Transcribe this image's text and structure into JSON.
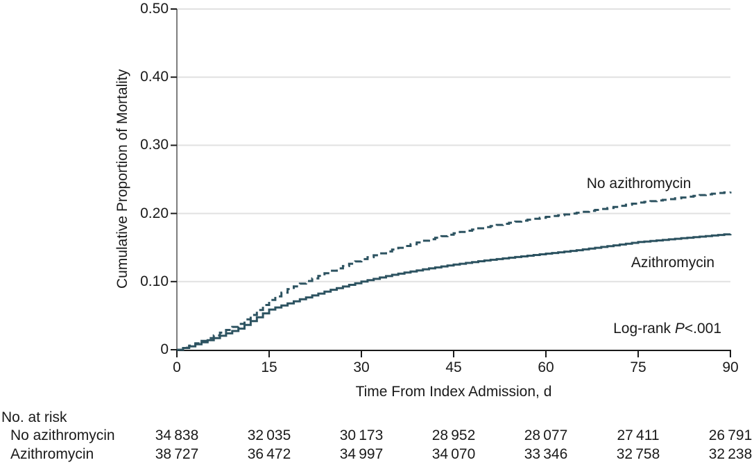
{
  "chart_data": {
    "type": "line",
    "subtype": "kaplan-meier cumulative incidence step curves",
    "title": "",
    "xlabel": "Time From Index Admission, d",
    "ylabel": "Cumulative Proportion of Mortality",
    "xlim": [
      0,
      90
    ],
    "ylim": [
      0,
      0.5
    ],
    "x_ticks": [
      0,
      15,
      30,
      45,
      60,
      75,
      90
    ],
    "x_tick_labels": [
      "0",
      "15",
      "30",
      "45",
      "60",
      "75",
      "90"
    ],
    "y_ticks": [
      0,
      0.1,
      0.2,
      0.3,
      0.4,
      0.5
    ],
    "y_tick_labels": [
      "0",
      "0.10",
      "0.20",
      "0.30",
      "0.40",
      "0.50"
    ],
    "grid": "horizontal light gray lines at y ticks",
    "legend_position": "inline curve labels",
    "x": [
      0,
      2,
      4,
      6,
      8,
      10,
      12,
      15,
      18,
      20,
      25,
      30,
      35,
      40,
      45,
      50,
      55,
      60,
      65,
      70,
      75,
      80,
      85,
      90
    ],
    "series": [
      {
        "name": "No azithromycin",
        "line_style": "dashed",
        "values": [
          0,
          0.006,
          0.013,
          0.021,
          0.029,
          0.038,
          0.051,
          0.073,
          0.089,
          0.097,
          0.116,
          0.133,
          0.147,
          0.16,
          0.171,
          0.18,
          0.188,
          0.195,
          0.201,
          0.208,
          0.216,
          0.221,
          0.227,
          0.232
        ]
      },
      {
        "name": "Azithromycin",
        "line_style": "solid",
        "values": [
          0,
          0.005,
          0.011,
          0.017,
          0.024,
          0.031,
          0.042,
          0.059,
          0.068,
          0.074,
          0.088,
          0.1,
          0.11,
          0.118,
          0.125,
          0.131,
          0.136,
          0.141,
          0.146,
          0.152,
          0.158,
          0.162,
          0.166,
          0.17
        ]
      }
    ],
    "annotation": {
      "prefix": "Log-rank",
      "p_symbol": "P",
      "p_value": "<.001"
    },
    "colors": {
      "line": "#2d5361",
      "grid": "#e1e1e1",
      "axis": "#1a1a1a",
      "axis_y": "#7d7d7d",
      "text": "#1a1a1a"
    }
  },
  "risk_table": {
    "title": "No. at risk",
    "rows": [
      {
        "label": "No azithromycin",
        "values": [
          "34 838",
          "32 035",
          "30 173",
          "28 952",
          "28 077",
          "27 411",
          "26 791"
        ]
      },
      {
        "label": "Azithromycin",
        "values": [
          "38 727",
          "36 472",
          "34 997",
          "34 070",
          "33 346",
          "32 758",
          "32 238"
        ]
      }
    ]
  }
}
